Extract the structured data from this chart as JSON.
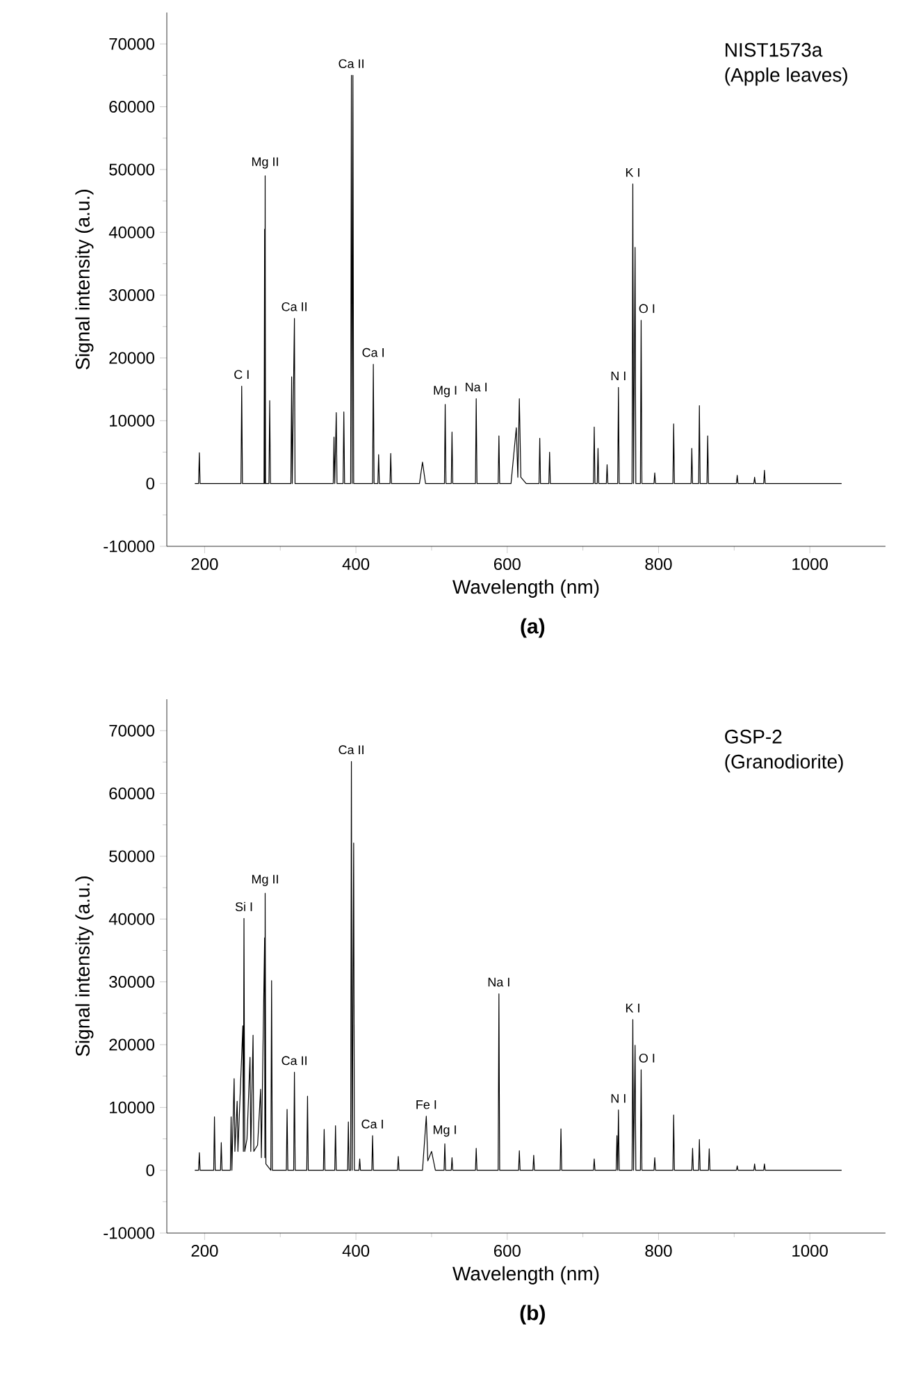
{
  "chart_data": [
    {
      "type": "line",
      "xlabel": "Wavelength (nm)",
      "ylabel": "Signal intensity (a.u.)",
      "color": "#000000",
      "xlim": [
        150,
        1100
      ],
      "xticks": [
        200,
        400,
        600,
        800,
        1000
      ],
      "ylim": [
        -10000,
        75000
      ],
      "yticks": [
        -10000,
        0,
        10000,
        20000,
        30000,
        40000,
        50000,
        60000,
        70000
      ],
      "x": [
        187,
        192,
        193,
        194,
        248,
        249,
        250,
        278.5,
        279.3,
        279.6,
        280,
        280.5,
        285,
        286,
        287,
        314,
        315,
        315.8,
        318.7,
        319.5,
        370,
        371,
        372,
        374,
        375,
        383,
        384,
        385,
        393,
        394,
        395,
        396,
        397,
        422,
        423,
        424,
        429,
        430,
        431,
        445,
        446,
        447,
        484,
        488,
        492,
        517,
        518,
        519,
        526,
        527,
        528,
        558,
        559,
        560,
        588,
        589,
        590,
        605,
        612,
        614,
        616,
        618,
        625,
        642,
        643,
        644,
        655,
        656,
        657,
        714,
        715,
        716,
        719,
        720,
        721,
        731,
        732,
        733,
        746,
        747,
        748,
        765,
        766,
        767,
        769,
        770,
        776,
        777,
        778,
        794,
        795,
        796,
        819,
        820,
        821,
        843,
        844,
        845,
        853,
        854,
        855,
        864,
        865,
        866,
        903,
        904,
        905,
        926,
        927,
        928,
        939,
        940,
        941,
        1042
      ],
      "values": [
        0,
        0,
        4900,
        0,
        0,
        15500,
        0,
        0,
        40500,
        0,
        49000,
        0,
        0,
        13200,
        0,
        0,
        17000,
        0,
        26300,
        0,
        0,
        7400,
        0,
        11300,
        0,
        0,
        11400,
        0,
        0,
        65000,
        0,
        65000,
        0,
        0,
        19000,
        0,
        0,
        4600,
        0,
        0,
        4800,
        0,
        0,
        3400,
        0,
        0,
        12600,
        0,
        0,
        8200,
        0,
        0,
        13500,
        0,
        0,
        7600,
        0,
        0,
        8900,
        1000,
        13500,
        1000,
        0,
        0,
        7200,
        0,
        0,
        5000,
        0,
        0,
        9000,
        0,
        0,
        5600,
        0,
        0,
        3000,
        0,
        0,
        15300,
        0,
        0,
        47700,
        0,
        37600,
        0,
        0,
        26000,
        0,
        0,
        1700,
        0,
        0,
        9500,
        0,
        0,
        5600,
        0,
        0,
        12400,
        0,
        0,
        7600,
        0,
        0,
        1300,
        0,
        0,
        1000,
        0,
        0,
        2100,
        0,
        0
      ],
      "annotations": [
        {
          "text": "C I",
          "x": 249,
          "y": 15500
        },
        {
          "text": "Mg II",
          "x": 280,
          "y": 49000
        },
        {
          "text": "Ca II",
          "x": 318.7,
          "y": 26300
        },
        {
          "text": "Ca II",
          "x": 394,
          "y": 65000
        },
        {
          "text": "Ca I",
          "x": 423,
          "y": 19000
        },
        {
          "text": "Mg I",
          "x": 518,
          "y": 12600
        },
        {
          "text": "Na I",
          "x": 559,
          "y": 13500
        },
        {
          "text": "N I",
          "x": 747,
          "y": 15300
        },
        {
          "text": "K I",
          "x": 766,
          "y": 47700
        },
        {
          "text": "O I",
          "x": 777,
          "y": 26000
        },
        "NIST1573a",
        "(Apple leaves)",
        "(a)"
      ]
    },
    {
      "type": "line",
      "xlabel": "Wavelength (nm)",
      "ylabel": "Signal intensity (a.u.)",
      "color": "#000000",
      "xlim": [
        150,
        1100
      ],
      "xticks": [
        200,
        400,
        600,
        800,
        1000
      ],
      "ylim": [
        -10000,
        75000
      ],
      "yticks": [
        -10000,
        0,
        10000,
        20000,
        30000,
        40000,
        50000,
        60000,
        70000
      ],
      "x": [
        187,
        192,
        193,
        194,
        212,
        213,
        214,
        221,
        222,
        223,
        234,
        235,
        236,
        239,
        240,
        243,
        244,
        250.5,
        251.2,
        252,
        253,
        256,
        260,
        261,
        264,
        265,
        270,
        274,
        275,
        279.3,
        279.6,
        280,
        281,
        287.5,
        288.5,
        289.5,
        308,
        309,
        310,
        317.7,
        318.7,
        319.7,
        335,
        336,
        337,
        357,
        358,
        359,
        372,
        373,
        374,
        389,
        390,
        391,
        393,
        394,
        395,
        397,
        398,
        404,
        405,
        406,
        421,
        422,
        423,
        455,
        456,
        457,
        488,
        493,
        495,
        500,
        505,
        516.5,
        517.5,
        518.5,
        526,
        527,
        528,
        558,
        559,
        560,
        588,
        589,
        590,
        615,
        616,
        617,
        634,
        635,
        636,
        670,
        671,
        672,
        714,
        715,
        716,
        744,
        745,
        746,
        747,
        748,
        765,
        766,
        767,
        769,
        770,
        776,
        777,
        778,
        794,
        795,
        796,
        819,
        820,
        821,
        844,
        845,
        846,
        853,
        854,
        855,
        866,
        867,
        868,
        903,
        904,
        905,
        926,
        927,
        928,
        939,
        940,
        941,
        1042
      ],
      "values": [
        0,
        0,
        2800,
        0,
        0,
        8500,
        0,
        0,
        4400,
        0,
        0,
        8500,
        0,
        14600,
        3000,
        11000,
        3000,
        23000,
        3000,
        40100,
        3000,
        5000,
        18000,
        3000,
        21500,
        3000,
        4000,
        12900,
        2000,
        37000,
        2000,
        44100,
        1000,
        0,
        30200,
        0,
        0,
        9700,
        0,
        0,
        15600,
        0,
        0,
        11800,
        0,
        0,
        6500,
        0,
        0,
        7100,
        0,
        0,
        7700,
        0,
        0,
        65100,
        0,
        52100,
        0,
        0,
        1800,
        0,
        0,
        5500,
        0,
        0,
        2200,
        0,
        0,
        8600,
        1500,
        3000,
        0,
        0,
        4200,
        0,
        0,
        2000,
        0,
        0,
        3500,
        0,
        0,
        28100,
        0,
        0,
        3100,
        0,
        0,
        2400,
        0,
        0,
        6600,
        0,
        0,
        1800,
        0,
        0,
        5500,
        0,
        9600,
        0,
        0,
        24000,
        0,
        19900,
        0,
        0,
        16000,
        0,
        0,
        2000,
        0,
        0,
        8800,
        0,
        0,
        3500,
        0,
        0,
        4900,
        0,
        0,
        3400,
        0,
        0,
        700,
        0,
        0,
        1000,
        0,
        0,
        1000,
        0,
        0
      ],
      "annotations": [
        {
          "text": "Si I",
          "x": 252,
          "y": 40100
        },
        {
          "text": "Mg II",
          "x": 280,
          "y": 44100
        },
        {
          "text": "Ca II",
          "x": 318.7,
          "y": 15600
        },
        {
          "text": "Ca II",
          "x": 394,
          "y": 65100
        },
        {
          "text": "Ca I",
          "x": 422,
          "y": 5500
        },
        {
          "text": "Fe I",
          "x": 493,
          "y": 8600
        },
        {
          "text": "Mg I",
          "x": 517.5,
          "y": 4200
        },
        {
          "text": "Na I",
          "x": 589,
          "y": 28100
        },
        {
          "text": "N I",
          "x": 747,
          "y": 9600
        },
        {
          "text": "K I",
          "x": 766,
          "y": 24000
        },
        {
          "text": "O I",
          "x": 777,
          "y": 16000
        },
        "GSP-2",
        "(Granodiorite)",
        "(b)"
      ]
    }
  ]
}
